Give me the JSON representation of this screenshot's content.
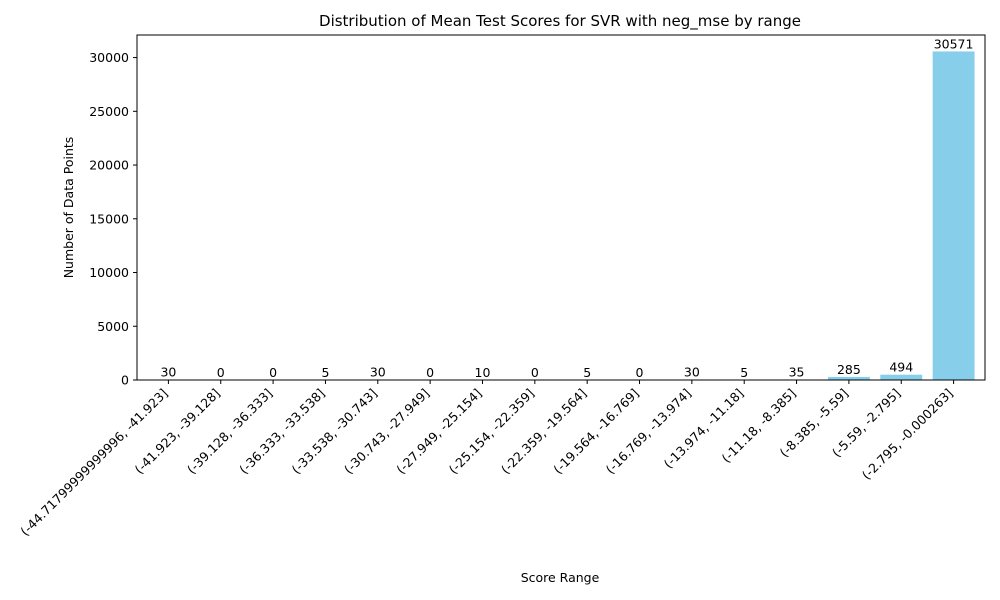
{
  "chart_data": {
    "type": "bar",
    "title": "Distribution of Mean Test Scores for SVR with neg_mse by range",
    "xlabel": "Score Range",
    "ylabel": "Number of Data Points",
    "categories": [
      "(-44.71799999999996, -41.923]",
      "(-41.923, -39.128]",
      "(-39.128, -36.333]",
      "(-36.333, -33.538]",
      "(-33.538, -30.743]",
      "(-30.743, -27.949]",
      "(-27.949, -25.154]",
      "(-25.154, -22.359]",
      "(-22.359, -19.564]",
      "(-19.564, -16.769]",
      "(-16.769, -13.974]",
      "(-13.974, -11.18]",
      "(-11.18, -8.385]",
      "(-8.385, -5.59]",
      "(-5.59, -2.795]",
      "(-2.795, -0.000263]"
    ],
    "values": [
      30,
      0,
      0,
      5,
      30,
      0,
      10,
      0,
      5,
      0,
      30,
      5,
      35,
      285,
      494,
      30571
    ],
    "ylim": [
      0,
      32100
    ],
    "yticks": [
      0,
      5000,
      10000,
      15000,
      20000,
      25000,
      30000
    ],
    "bar_color": "#87CEEB",
    "grid": false,
    "legend": false
  }
}
